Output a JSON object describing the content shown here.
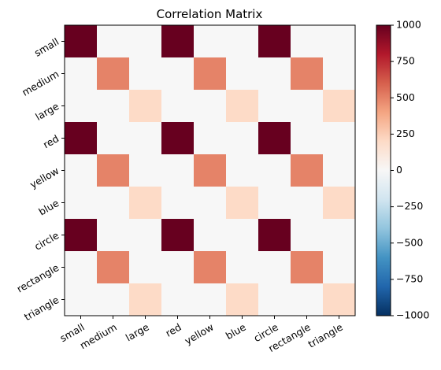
{
  "chart_data": {
    "type": "heatmap",
    "title": "Correlation Matrix",
    "x_categories": [
      "small",
      "medium",
      "large",
      "red",
      "yellow",
      "blue",
      "circle",
      "rectangle",
      "triangle"
    ],
    "y_categories": [
      "small",
      "medium",
      "large",
      "red",
      "yellow",
      "blue",
      "circle",
      "rectangle",
      "triangle"
    ],
    "values": [
      [
        1000,
        0,
        0,
        1000,
        0,
        0,
        1000,
        0,
        0
      ],
      [
        0,
        500,
        0,
        0,
        500,
        0,
        0,
        500,
        0
      ],
      [
        0,
        0,
        200,
        0,
        0,
        200,
        0,
        0,
        200
      ],
      [
        1000,
        0,
        0,
        1000,
        0,
        0,
        1000,
        0,
        0
      ],
      [
        0,
        500,
        0,
        0,
        500,
        0,
        0,
        500,
        0
      ],
      [
        0,
        0,
        200,
        0,
        0,
        200,
        0,
        0,
        200
      ],
      [
        1000,
        0,
        0,
        1000,
        0,
        0,
        1000,
        0,
        0
      ],
      [
        0,
        500,
        0,
        0,
        500,
        0,
        0,
        500,
        0
      ],
      [
        0,
        0,
        200,
        0,
        0,
        200,
        0,
        0,
        200
      ]
    ],
    "colorbar": {
      "min": -1000,
      "max": 1000,
      "ticks": [
        1000,
        750,
        500,
        250,
        0,
        -250,
        -500,
        -750,
        -1000
      ],
      "tick_labels": [
        "1000",
        "750",
        "500",
        "250",
        "0",
        "−250",
        "−500",
        "−750",
        "−1000"
      ],
      "colormap": "RdBu_r"
    },
    "grid": false
  }
}
